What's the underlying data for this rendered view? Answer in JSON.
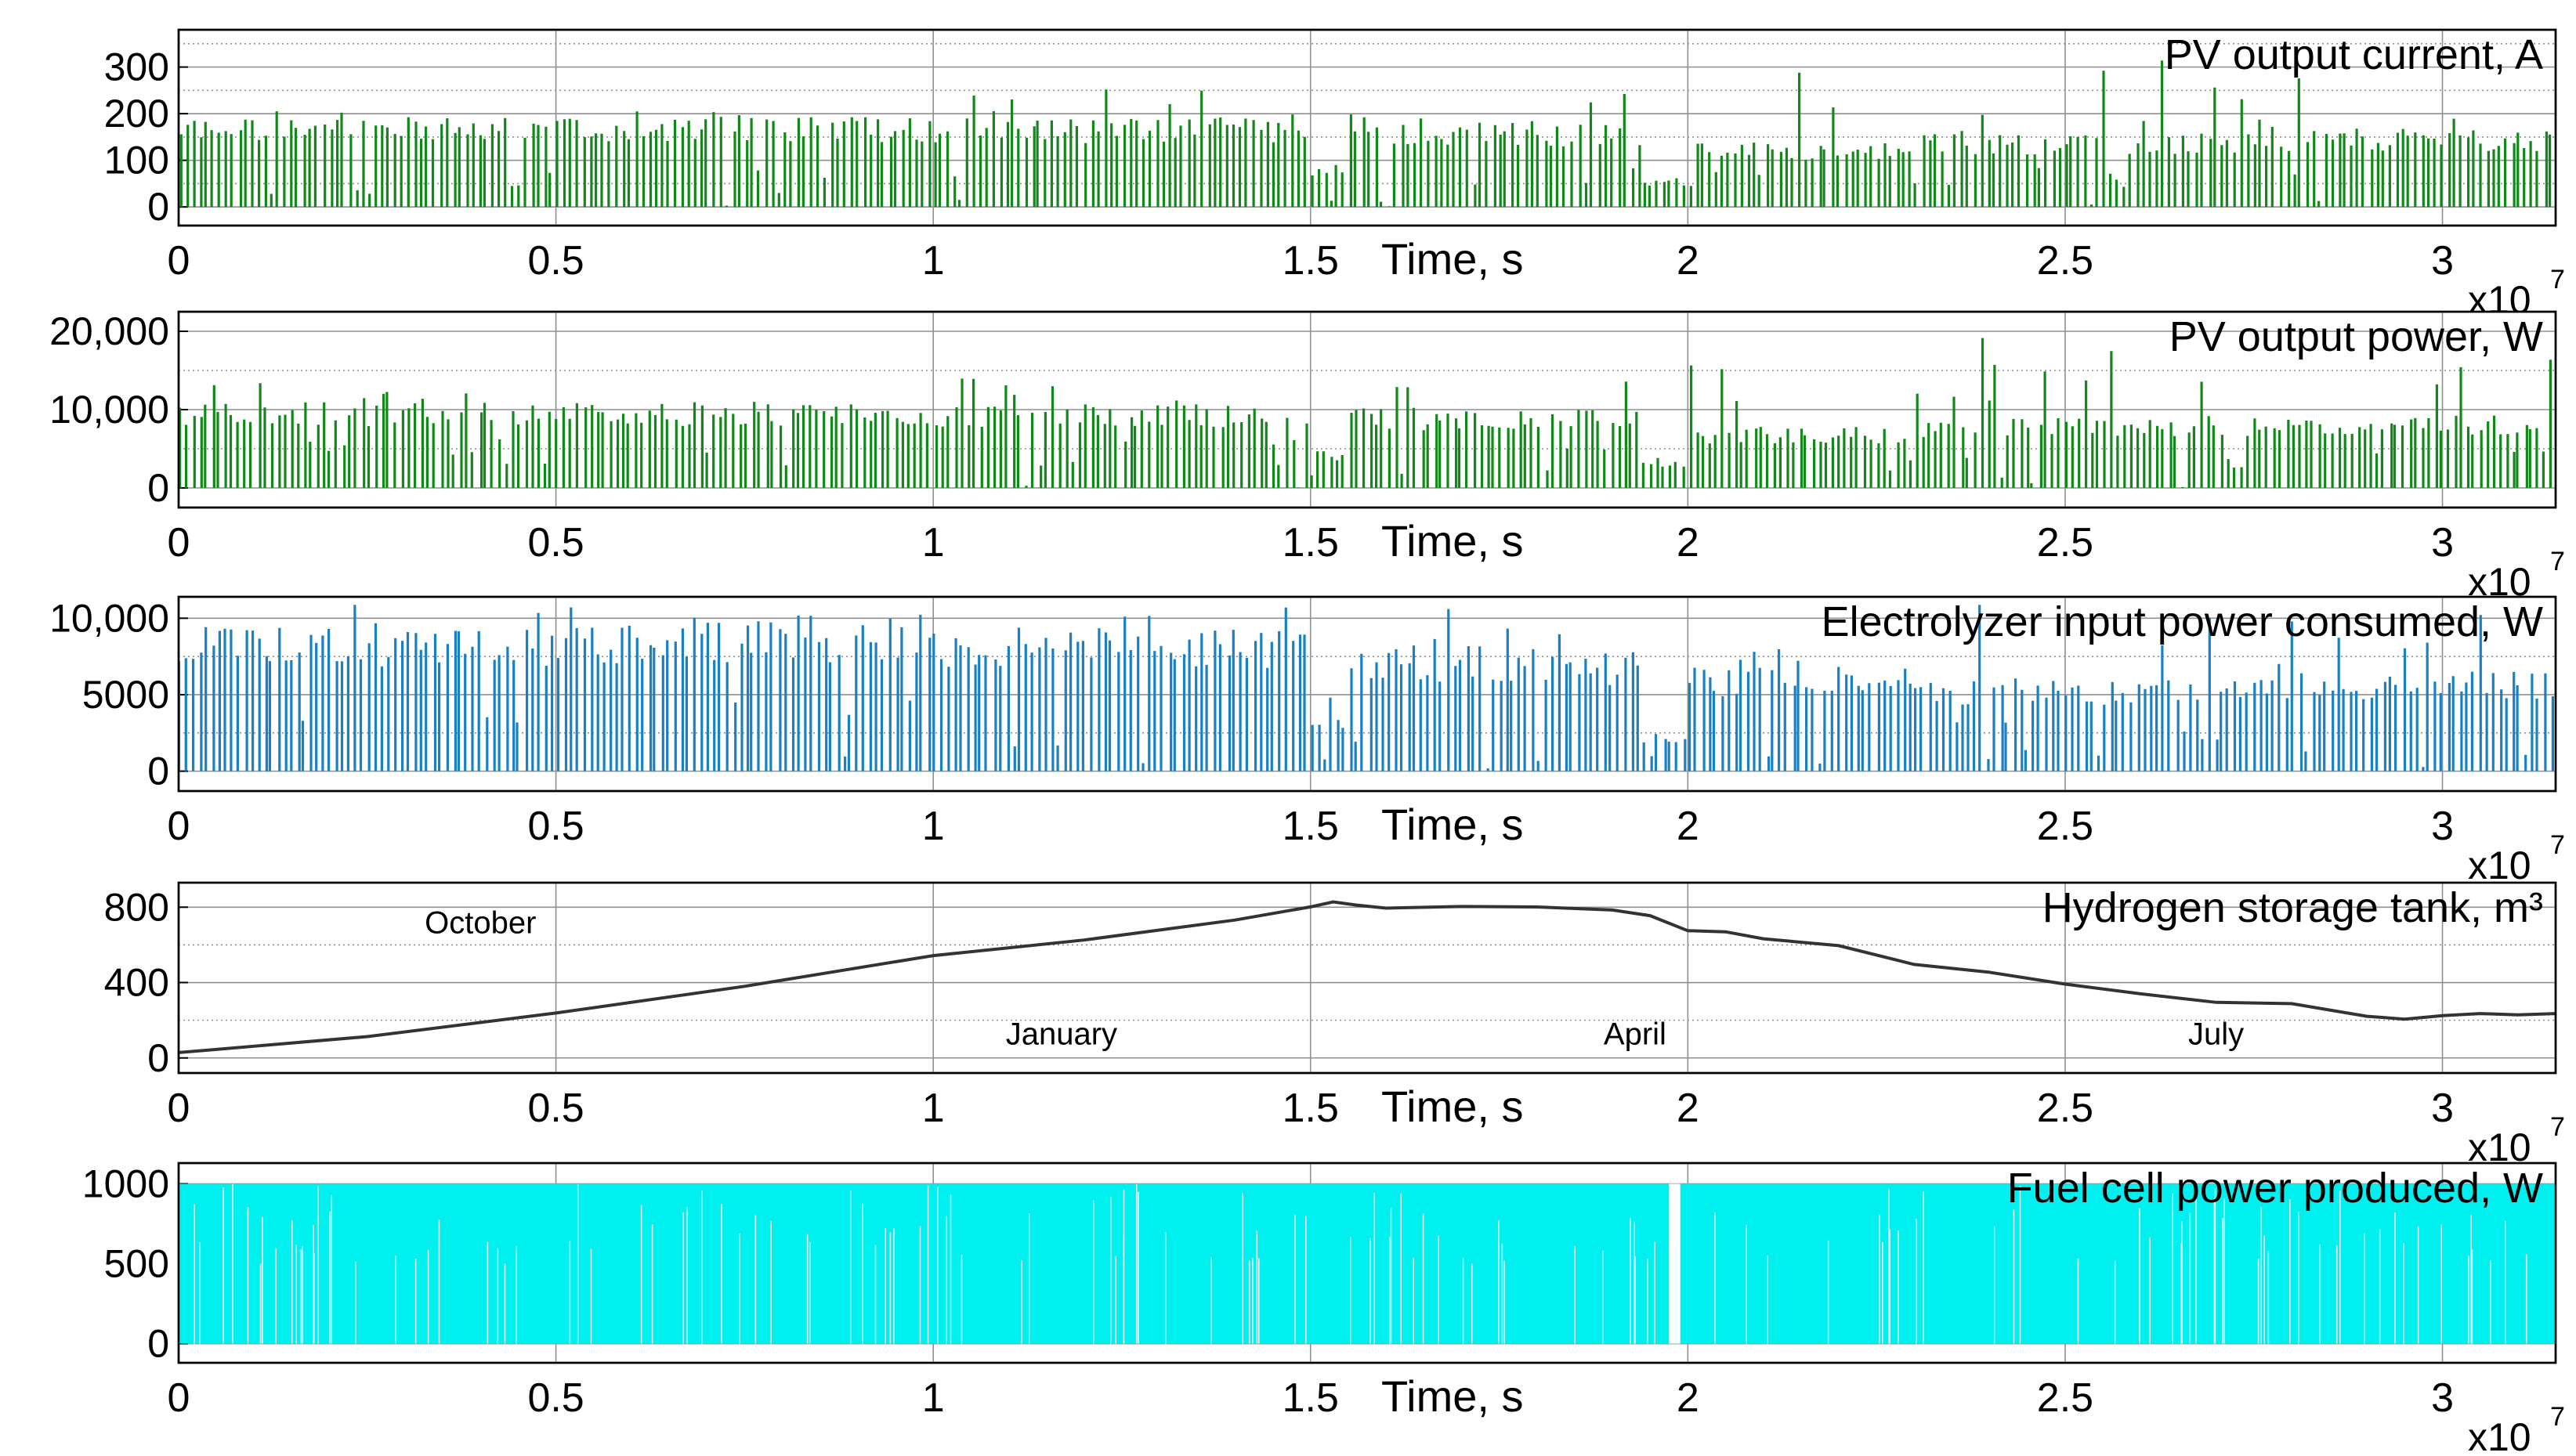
{
  "chart_data": [
    {
      "type": "line",
      "title": "PV output current, A",
      "xlabel": "Time, s",
      "x_multiplier": "x10",
      "x_multiplier_exp": "7",
      "x_ticks": [
        "0",
        "0.5",
        "1",
        "1.5",
        "2",
        "2.5",
        "3"
      ],
      "y_ticks": [
        "0",
        "100",
        "200",
        "300"
      ],
      "xlim": [
        0,
        3.15
      ],
      "ylim": [
        -40,
        380
      ],
      "grid": true,
      "color": "#13881a",
      "series": [
        {
          "style": "daily-spikes",
          "segments": [
            {
              "t0": 0.0,
              "t1": 0.5,
              "min": 0,
              "peak": 185,
              "spike_max": 255
            },
            {
              "t0": 0.5,
              "t1": 1.0,
              "min": 0,
              "peak": 185,
              "spike_max": 205
            },
            {
              "t0": 1.0,
              "t1": 1.5,
              "min": 0,
              "peak": 182,
              "spike_max": 255
            },
            {
              "t0": 1.5,
              "t1": 1.55,
              "min": 0,
              "peak": 80,
              "spike_max": 110
            },
            {
              "t0": 1.55,
              "t1": 1.8,
              "min": 0,
              "peak": 175,
              "spike_max": 225
            },
            {
              "t0": 1.8,
              "t1": 1.94,
              "min": 0,
              "peak": 170,
              "spike_max": 265
            },
            {
              "t0": 1.94,
              "t1": 2.0,
              "min": 0,
              "peak": 60,
              "spike_max": 80
            },
            {
              "t0": 2.0,
              "t1": 2.3,
              "min": 0,
              "peak": 135,
              "spike_max": 300
            },
            {
              "t0": 2.3,
              "t1": 2.8,
              "min": 0,
              "peak": 150,
              "spike_max": 345
            },
            {
              "t0": 2.8,
              "t1": 3.15,
              "min": 0,
              "peak": 160,
              "spike_max": 325
            }
          ]
        }
      ]
    },
    {
      "type": "line",
      "title": "PV output power, W",
      "xlabel": "Time, s",
      "x_multiplier": "x10",
      "x_multiplier_exp": "7",
      "x_ticks": [
        "0",
        "0.5",
        "1",
        "1.5",
        "2",
        "2.5",
        "3"
      ],
      "y_ticks": [
        "0",
        "10,000",
        "20,000"
      ],
      "xlim": [
        0,
        3.15
      ],
      "ylim": [
        -2500,
        22500
      ],
      "grid": true,
      "color": "#13881a",
      "series": [
        {
          "style": "daily-spikes",
          "segments": [
            {
              "t0": 0.0,
              "t1": 0.5,
              "min": 0,
              "peak": 10500,
              "spike_max": 14000
            },
            {
              "t0": 0.5,
              "t1": 1.0,
              "min": 0,
              "peak": 10500,
              "spike_max": 11500
            },
            {
              "t0": 1.0,
              "t1": 1.5,
              "min": 0,
              "peak": 10300,
              "spike_max": 14500
            },
            {
              "t0": 1.5,
              "t1": 1.55,
              "min": 0,
              "peak": 4500,
              "spike_max": 6000
            },
            {
              "t0": 1.55,
              "t1": 1.8,
              "min": 0,
              "peak": 9800,
              "spike_max": 13000
            },
            {
              "t0": 1.8,
              "t1": 1.94,
              "min": 0,
              "peak": 9500,
              "spike_max": 15000
            },
            {
              "t0": 1.94,
              "t1": 2.0,
              "min": 0,
              "peak": 3500,
              "spike_max": 4500
            },
            {
              "t0": 2.0,
              "t1": 2.3,
              "min": 0,
              "peak": 7500,
              "spike_max": 17000
            },
            {
              "t0": 2.3,
              "t1": 2.8,
              "min": 0,
              "peak": 8500,
              "spike_max": 20000
            },
            {
              "t0": 2.8,
              "t1": 3.15,
              "min": 0,
              "peak": 9000,
              "spike_max": 18500
            }
          ]
        }
      ]
    },
    {
      "type": "line",
      "title": "Electrolyzer input power consumed, W",
      "xlabel": "Time, s",
      "x_multiplier": "x10",
      "x_multiplier_exp": "7",
      "x_ticks": [
        "0",
        "0.5",
        "1",
        "1.5",
        "2",
        "2.5",
        "3"
      ],
      "y_ticks": [
        "0",
        "5000",
        "10,000"
      ],
      "xlim": [
        0,
        3.15
      ],
      "ylim": [
        -1300,
        11400
      ],
      "grid": true,
      "color": "#1a80c4",
      "series": [
        {
          "style": "daily-spikes",
          "segments": [
            {
              "t0": 0.0,
              "t1": 0.5,
              "min": 0,
              "peak": 9000,
              "spike_max": 11000
            },
            {
              "t0": 0.5,
              "t1": 1.0,
              "min": 0,
              "peak": 9300,
              "spike_max": 11000
            },
            {
              "t0": 1.0,
              "t1": 1.5,
              "min": 0,
              "peak": 9000,
              "spike_max": 11000
            },
            {
              "t0": 1.5,
              "t1": 1.55,
              "min": 0,
              "peak": 3500,
              "spike_max": 5000
            },
            {
              "t0": 1.55,
              "t1": 1.8,
              "min": 0,
              "peak": 7800,
              "spike_max": 11000
            },
            {
              "t0": 1.8,
              "t1": 1.94,
              "min": 0,
              "peak": 7500,
              "spike_max": 11000
            },
            {
              "t0": 1.94,
              "t1": 2.0,
              "min": 0,
              "peak": 2500,
              "spike_max": 5500
            },
            {
              "t0": 2.0,
              "t1": 2.3,
              "min": 0,
              "peak": 6500,
              "spike_max": 11000
            },
            {
              "t0": 2.3,
              "t1": 2.8,
              "min": 0,
              "peak": 5800,
              "spike_max": 11000
            },
            {
              "t0": 2.8,
              "t1": 3.15,
              "min": 0,
              "peak": 6200,
              "spike_max": 11000
            }
          ]
        }
      ]
    },
    {
      "type": "line",
      "title": "Hydrogen storage tank, m³",
      "xlabel": "Time, s",
      "x_multiplier": "x10",
      "x_multiplier_exp": "7",
      "x_ticks": [
        "0",
        "0.5",
        "1",
        "1.5",
        "2",
        "2.5",
        "3"
      ],
      "y_ticks": [
        "0",
        "400",
        "800"
      ],
      "xlim": [
        0,
        3.15
      ],
      "ylim": [
        -80,
        930
      ],
      "grid": true,
      "color": "#333333",
      "annotations": [
        {
          "text": "October",
          "x": 0.4,
          "y": 720
        },
        {
          "text": "January",
          "x": 1.17,
          "y": 130
        },
        {
          "text": "April",
          "x": 1.93,
          "y": 130
        },
        {
          "text": "July",
          "x": 2.7,
          "y": 130
        }
      ],
      "series": [
        {
          "x": [
            0,
            0.25,
            0.5,
            0.75,
            1.0,
            1.2,
            1.4,
            1.5,
            1.53,
            1.56,
            1.6,
            1.7,
            1.8,
            1.9,
            1.95,
            2.0,
            2.05,
            2.1,
            2.2,
            2.3,
            2.4,
            2.5,
            2.6,
            2.7,
            2.8,
            2.9,
            2.95,
            3.0,
            3.05,
            3.1,
            3.15
          ],
          "values": [
            20,
            120,
            240,
            390,
            540,
            630,
            730,
            800,
            835,
            805,
            800,
            800,
            790,
            790,
            760,
            680,
            665,
            640,
            600,
            505,
            455,
            380,
            335,
            300,
            280,
            210,
            215,
            220,
            225,
            235,
            225
          ]
        }
      ]
    },
    {
      "type": "area",
      "title": "Fuel cell power produced, W",
      "xlabel": "Time, s",
      "x_multiplier": "x10",
      "x_multiplier_exp": "7",
      "x_ticks": [
        "0",
        "0.5",
        "1",
        "1.5",
        "2",
        "2.5",
        "3"
      ],
      "y_ticks": [
        "0",
        "500",
        "1000"
      ],
      "xlim": [
        0,
        3.15
      ],
      "ylim": [
        -120,
        1130
      ],
      "grid": true,
      "color": "#00f0f0",
      "series": [
        {
          "style": "dense-switching",
          "min": 0,
          "max": 1000,
          "gaps": [
            {
              "t0": 1.975,
              "t1": 1.99
            }
          ]
        }
      ]
    }
  ]
}
